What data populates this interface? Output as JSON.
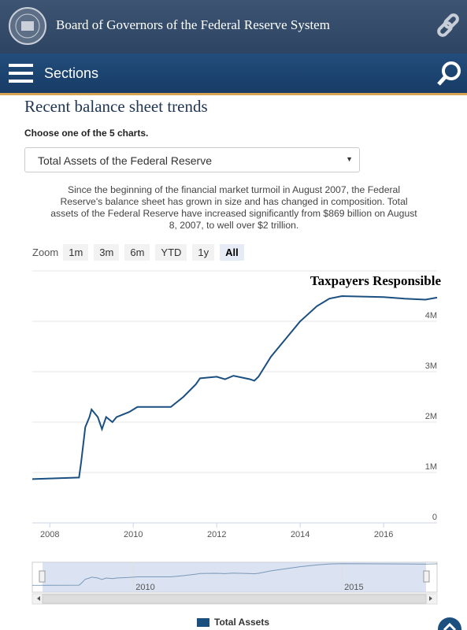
{
  "header": {
    "title": "Board of Governors of the Federal Reserve System"
  },
  "nav": {
    "label": "Sections"
  },
  "content": {
    "heading": "Recent balance sheet trends",
    "select_prompt": "Choose one of the 5 charts.",
    "selected_chart": "Total Assets of the Federal Reserve",
    "description": "Since the beginning of the financial market turmoil in August 2007, the Federal Reserve's balance sheet has grown in size and has changed in composition. Total assets of the Federal Reserve have increased significantly from $869 billion on August 8, 2007, to well over $2 trillion.",
    "zoom": {
      "label": "Zoom",
      "buttons": [
        "1m",
        "3m",
        "6m",
        "YTD",
        "1y",
        "All"
      ]
    }
  },
  "chart_data": {
    "type": "line",
    "annotation": "Taxpayers Responsible",
    "x": [
      2007.58,
      2008.0,
      2008.7,
      2008.75,
      2008.85,
      2008.95,
      2009.0,
      2009.15,
      2009.25,
      2009.35,
      2009.5,
      2009.6,
      2009.9,
      2010.1,
      2010.5,
      2010.9,
      2011.2,
      2011.5,
      2011.6,
      2012.0,
      2012.2,
      2012.4,
      2012.8,
      2012.9,
      2013.0,
      2013.3,
      2013.6,
      2014.0,
      2014.4,
      2014.7,
      2015.0,
      2016.0,
      2016.5,
      2017.0,
      2017.28
    ],
    "series": [
      {
        "name": "Total Assets",
        "color": "#1a4f80",
        "values": [
          870000,
          880000,
          900000,
          1200000,
          1900000,
          2100000,
          2250000,
          2100000,
          1860000,
          2100000,
          2000000,
          2100000,
          2200000,
          2300000,
          2300000,
          2300000,
          2500000,
          2750000,
          2870000,
          2900000,
          2850000,
          2920000,
          2850000,
          2820000,
          2900000,
          3300000,
          3600000,
          4000000,
          4300000,
          4450000,
          4500000,
          4480000,
          4450000,
          4430000,
          4470000
        ]
      }
    ],
    "xlim": [
      2007.58,
      2017.28
    ],
    "xticks": [
      2008,
      2010,
      2012,
      2014,
      2016
    ],
    "ylim": [
      0,
      5000000
    ],
    "yticks": [
      0,
      {
        "value": 1000000,
        "label": "1M"
      },
      {
        "value": 2000000,
        "label": "2M"
      },
      {
        "value": 3000000,
        "label": "3M"
      },
      {
        "value": 4000000,
        "label": "4M"
      }
    ],
    "grid": true,
    "navigator_xticks": [
      2010,
      2015
    ]
  }
}
